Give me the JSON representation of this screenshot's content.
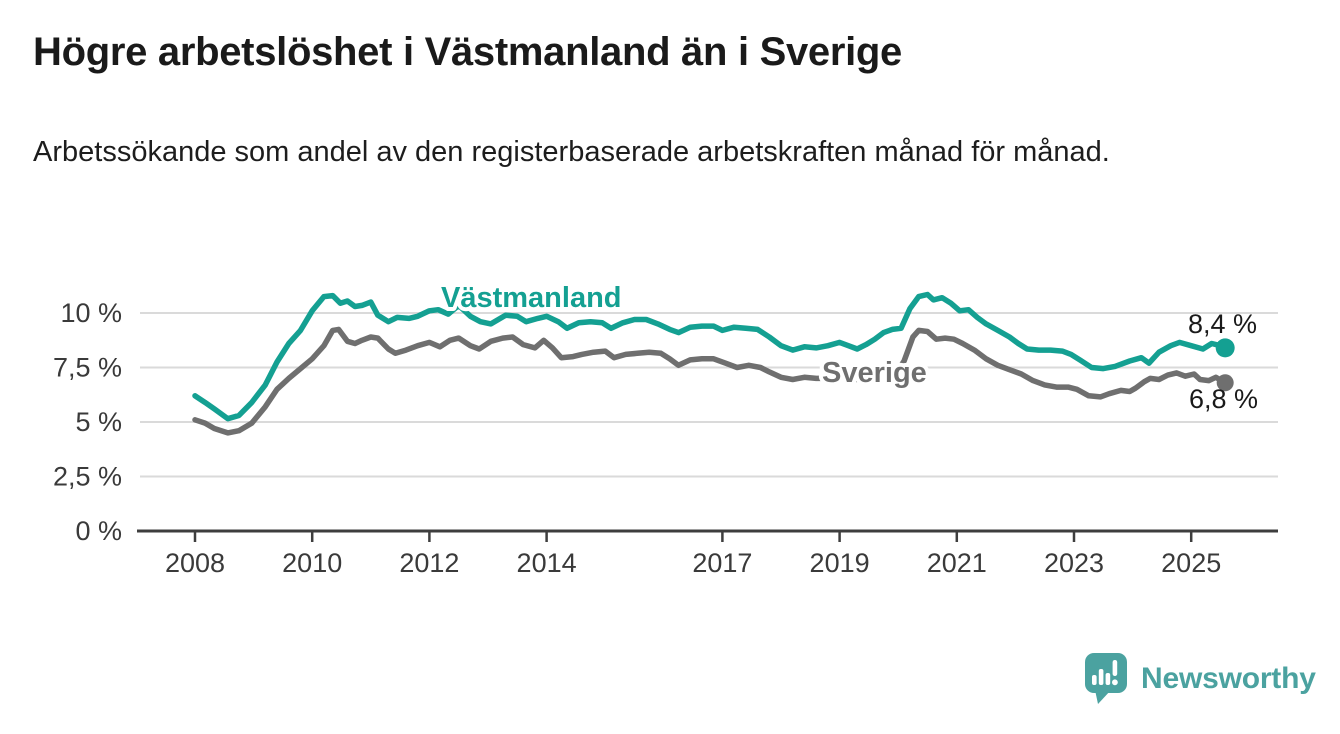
{
  "title": "Högre arbetslöshet i Västmanland än i Sverige",
  "subtitle": "Arbetssökande som andel av den registerbaserade arbetskraften månad för månad.",
  "branding": {
    "logo_text": "Newsworthy",
    "logo_icon": "bar-chart-speech-bubble-icon",
    "logo_color": "#4ba2a0"
  },
  "chart_data": {
    "type": "line",
    "title": "Högre arbetslöshet i Västmanland än i Sverige",
    "xlabel": "",
    "ylabel": "",
    "grid": "horizontal",
    "xlim": [
      2008,
      2025.58
    ],
    "ylim": [
      0,
      11.6
    ],
    "x_tick_values": [
      2008,
      2010,
      2012,
      2014,
      2017,
      2019,
      2021,
      2023,
      2025
    ],
    "x_tick_labels": [
      "2008",
      "2010",
      "2012",
      "2014",
      "2017",
      "2019",
      "2021",
      "2023",
      "2025"
    ],
    "y_tick_values": [
      0,
      2.5,
      5,
      7.5,
      10
    ],
    "y_tick_labels": [
      "0 %",
      "2,5 %",
      "5 %",
      "7,5 %",
      "10 %"
    ],
    "colors": {
      "grid": "#dadada",
      "axis": "#3e3e3e",
      "tick_text": "#3a3a3a",
      "end_label_text": "#1a1a1a"
    },
    "series": [
      {
        "name": "Västmanland",
        "color": "#14a092",
        "end_label": "8,4 %",
        "end_value": 8.4,
        "points": [
          [
            2008.0,
            6.2
          ],
          [
            2008.17,
            5.9
          ],
          [
            2008.33,
            5.6
          ],
          [
            2008.56,
            5.15
          ],
          [
            2008.75,
            5.3
          ],
          [
            2008.97,
            5.9
          ],
          [
            2009.2,
            6.7
          ],
          [
            2009.4,
            7.75
          ],
          [
            2009.6,
            8.6
          ],
          [
            2009.8,
            9.2
          ],
          [
            2010.0,
            10.1
          ],
          [
            2010.2,
            10.75
          ],
          [
            2010.35,
            10.8
          ],
          [
            2010.48,
            10.45
          ],
          [
            2010.6,
            10.55
          ],
          [
            2010.73,
            10.3
          ],
          [
            2010.85,
            10.35
          ],
          [
            2011.0,
            10.5
          ],
          [
            2011.12,
            9.9
          ],
          [
            2011.3,
            9.6
          ],
          [
            2011.45,
            9.8
          ],
          [
            2011.65,
            9.75
          ],
          [
            2011.8,
            9.85
          ],
          [
            2012.0,
            10.1
          ],
          [
            2012.15,
            10.15
          ],
          [
            2012.32,
            9.95
          ],
          [
            2012.5,
            10.35
          ],
          [
            2012.7,
            9.85
          ],
          [
            2012.87,
            9.6
          ],
          [
            2013.05,
            9.5
          ],
          [
            2013.3,
            9.9
          ],
          [
            2013.5,
            9.85
          ],
          [
            2013.65,
            9.6
          ],
          [
            2013.85,
            9.75
          ],
          [
            2014.0,
            9.85
          ],
          [
            2014.2,
            9.6
          ],
          [
            2014.35,
            9.3
          ],
          [
            2014.55,
            9.55
          ],
          [
            2014.75,
            9.6
          ],
          [
            2014.95,
            9.55
          ],
          [
            2015.1,
            9.3
          ],
          [
            2015.3,
            9.55
          ],
          [
            2015.5,
            9.7
          ],
          [
            2015.7,
            9.7
          ],
          [
            2015.9,
            9.5
          ],
          [
            2016.1,
            9.25
          ],
          [
            2016.25,
            9.1
          ],
          [
            2016.45,
            9.35
          ],
          [
            2016.65,
            9.4
          ],
          [
            2016.85,
            9.4
          ],
          [
            2017.0,
            9.2
          ],
          [
            2017.2,
            9.35
          ],
          [
            2017.4,
            9.3
          ],
          [
            2017.6,
            9.25
          ],
          [
            2017.8,
            8.9
          ],
          [
            2018.0,
            8.5
          ],
          [
            2018.2,
            8.3
          ],
          [
            2018.4,
            8.45
          ],
          [
            2018.6,
            8.4
          ],
          [
            2018.8,
            8.5
          ],
          [
            2019.0,
            8.65
          ],
          [
            2019.15,
            8.5
          ],
          [
            2019.3,
            8.35
          ],
          [
            2019.45,
            8.55
          ],
          [
            2019.6,
            8.8
          ],
          [
            2019.75,
            9.1
          ],
          [
            2019.9,
            9.25
          ],
          [
            2020.05,
            9.3
          ],
          [
            2020.2,
            10.2
          ],
          [
            2020.35,
            10.75
          ],
          [
            2020.5,
            10.85
          ],
          [
            2020.6,
            10.6
          ],
          [
            2020.75,
            10.7
          ],
          [
            2020.9,
            10.45
          ],
          [
            2021.05,
            10.1
          ],
          [
            2021.2,
            10.15
          ],
          [
            2021.35,
            9.8
          ],
          [
            2021.5,
            9.5
          ],
          [
            2021.7,
            9.2
          ],
          [
            2021.9,
            8.9
          ],
          [
            2022.05,
            8.6
          ],
          [
            2022.2,
            8.35
          ],
          [
            2022.4,
            8.3
          ],
          [
            2022.6,
            8.3
          ],
          [
            2022.8,
            8.25
          ],
          [
            2022.95,
            8.1
          ],
          [
            2023.1,
            7.85
          ],
          [
            2023.3,
            7.5
          ],
          [
            2023.5,
            7.45
          ],
          [
            2023.7,
            7.55
          ],
          [
            2023.95,
            7.8
          ],
          [
            2024.15,
            7.95
          ],
          [
            2024.28,
            7.7
          ],
          [
            2024.45,
            8.2
          ],
          [
            2024.65,
            8.5
          ],
          [
            2024.8,
            8.65
          ],
          [
            2025.0,
            8.5
          ],
          [
            2025.2,
            8.35
          ],
          [
            2025.35,
            8.6
          ],
          [
            2025.5,
            8.5
          ],
          [
            2025.58,
            8.4
          ]
        ]
      },
      {
        "name": "Sverige",
        "color": "#6f6f6f",
        "end_label": "6,8 %",
        "end_value": 6.8,
        "points": [
          [
            2008.0,
            5.1
          ],
          [
            2008.17,
            4.95
          ],
          [
            2008.33,
            4.7
          ],
          [
            2008.56,
            4.5
          ],
          [
            2008.75,
            4.6
          ],
          [
            2008.97,
            4.95
          ],
          [
            2009.2,
            5.7
          ],
          [
            2009.4,
            6.5
          ],
          [
            2009.6,
            7.0
          ],
          [
            2009.8,
            7.45
          ],
          [
            2010.0,
            7.9
          ],
          [
            2010.2,
            8.5
          ],
          [
            2010.35,
            9.2
          ],
          [
            2010.45,
            9.25
          ],
          [
            2010.6,
            8.7
          ],
          [
            2010.73,
            8.6
          ],
          [
            2010.85,
            8.75
          ],
          [
            2011.0,
            8.9
          ],
          [
            2011.12,
            8.85
          ],
          [
            2011.3,
            8.35
          ],
          [
            2011.42,
            8.15
          ],
          [
            2011.6,
            8.3
          ],
          [
            2011.8,
            8.5
          ],
          [
            2012.0,
            8.65
          ],
          [
            2012.18,
            8.45
          ],
          [
            2012.35,
            8.75
          ],
          [
            2012.5,
            8.85
          ],
          [
            2012.7,
            8.5
          ],
          [
            2012.85,
            8.35
          ],
          [
            2013.05,
            8.7
          ],
          [
            2013.25,
            8.85
          ],
          [
            2013.42,
            8.9
          ],
          [
            2013.6,
            8.55
          ],
          [
            2013.8,
            8.4
          ],
          [
            2013.95,
            8.75
          ],
          [
            2014.1,
            8.4
          ],
          [
            2014.25,
            7.95
          ],
          [
            2014.45,
            8.0
          ],
          [
            2014.6,
            8.1
          ],
          [
            2014.8,
            8.2
          ],
          [
            2015.0,
            8.25
          ],
          [
            2015.15,
            7.95
          ],
          [
            2015.35,
            8.1
          ],
          [
            2015.55,
            8.15
          ],
          [
            2015.75,
            8.2
          ],
          [
            2015.95,
            8.15
          ],
          [
            2016.1,
            7.9
          ],
          [
            2016.25,
            7.6
          ],
          [
            2016.45,
            7.85
          ],
          [
            2016.65,
            7.9
          ],
          [
            2016.85,
            7.9
          ],
          [
            2017.05,
            7.7
          ],
          [
            2017.25,
            7.5
          ],
          [
            2017.45,
            7.6
          ],
          [
            2017.65,
            7.5
          ],
          [
            2017.8,
            7.3
          ],
          [
            2018.0,
            7.05
          ],
          [
            2018.2,
            6.95
          ],
          [
            2018.4,
            7.05
          ],
          [
            2018.6,
            7.0
          ],
          [
            2018.8,
            7.0
          ],
          [
            2019.0,
            7.1
          ],
          [
            2019.2,
            7.0
          ],
          [
            2019.4,
            6.9
          ],
          [
            2019.6,
            7.0
          ],
          [
            2019.8,
            7.1
          ],
          [
            2019.95,
            7.2
          ],
          [
            2020.1,
            7.8
          ],
          [
            2020.25,
            8.9
          ],
          [
            2020.35,
            9.2
          ],
          [
            2020.5,
            9.15
          ],
          [
            2020.65,
            8.8
          ],
          [
            2020.8,
            8.85
          ],
          [
            2020.95,
            8.8
          ],
          [
            2021.1,
            8.6
          ],
          [
            2021.3,
            8.3
          ],
          [
            2021.5,
            7.9
          ],
          [
            2021.7,
            7.6
          ],
          [
            2021.9,
            7.4
          ],
          [
            2022.1,
            7.2
          ],
          [
            2022.3,
            6.9
          ],
          [
            2022.5,
            6.7
          ],
          [
            2022.7,
            6.6
          ],
          [
            2022.9,
            6.6
          ],
          [
            2023.05,
            6.5
          ],
          [
            2023.25,
            6.2
          ],
          [
            2023.45,
            6.15
          ],
          [
            2023.6,
            6.3
          ],
          [
            2023.8,
            6.45
          ],
          [
            2023.95,
            6.4
          ],
          [
            2024.05,
            6.55
          ],
          [
            2024.2,
            6.85
          ],
          [
            2024.3,
            7.0
          ],
          [
            2024.45,
            6.95
          ],
          [
            2024.6,
            7.15
          ],
          [
            2024.75,
            7.25
          ],
          [
            2024.9,
            7.1
          ],
          [
            2025.05,
            7.2
          ],
          [
            2025.15,
            6.95
          ],
          [
            2025.3,
            6.9
          ],
          [
            2025.42,
            7.05
          ],
          [
            2025.58,
            6.8
          ]
        ]
      }
    ]
  }
}
